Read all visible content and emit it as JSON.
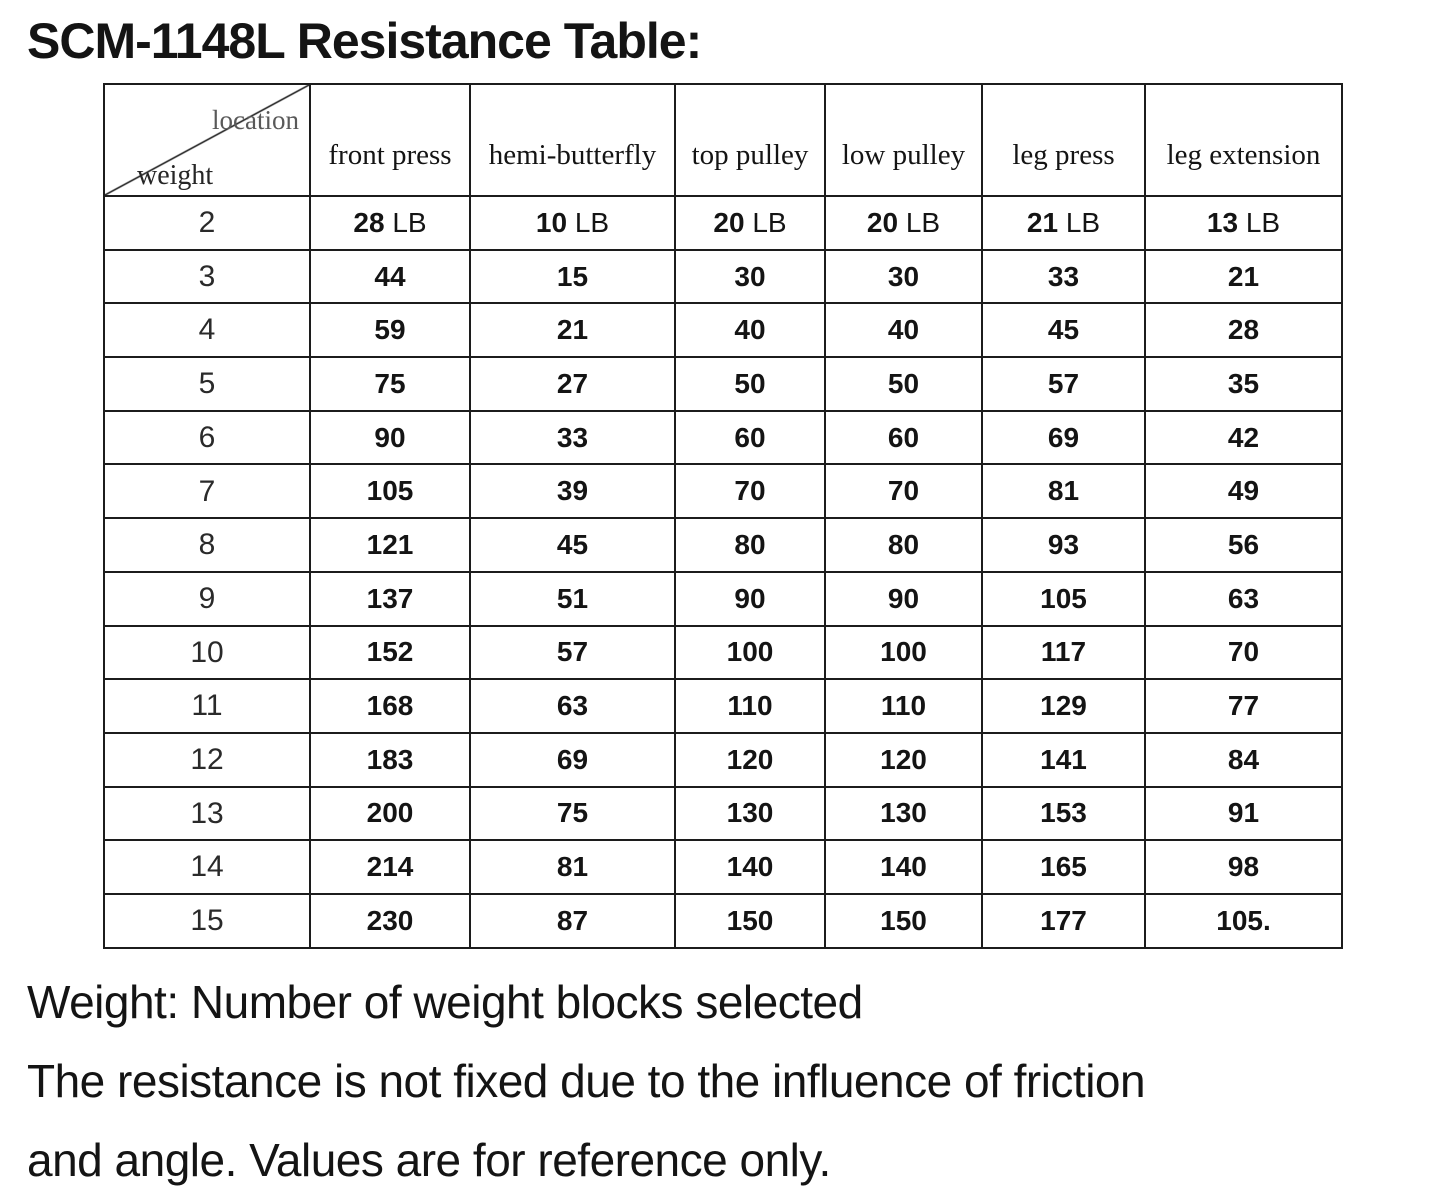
{
  "title": "SCM-1148L Resistance Table:",
  "table": {
    "corner": {
      "top_label": "location",
      "bottom_label": "weight"
    },
    "columns": [
      "front press",
      "hemi-butterfly",
      "top pulley",
      "low pulley",
      "leg press",
      "leg extension"
    ],
    "unit": "LB",
    "rows": [
      {
        "weight": "2",
        "show_unit": true,
        "values": [
          "28",
          "10",
          "20",
          "20",
          "21",
          "13"
        ]
      },
      {
        "weight": "3",
        "show_unit": false,
        "values": [
          "44",
          "15",
          "30",
          "30",
          "33",
          "21"
        ]
      },
      {
        "weight": "4",
        "show_unit": false,
        "values": [
          "59",
          "21",
          "40",
          "40",
          "45",
          "28"
        ]
      },
      {
        "weight": "5",
        "show_unit": false,
        "values": [
          "75",
          "27",
          "50",
          "50",
          "57",
          "35"
        ]
      },
      {
        "weight": "6",
        "show_unit": false,
        "values": [
          "90",
          "33",
          "60",
          "60",
          "69",
          "42"
        ]
      },
      {
        "weight": "7",
        "show_unit": false,
        "values": [
          "105",
          "39",
          "70",
          "70",
          "81",
          "49"
        ]
      },
      {
        "weight": "8",
        "show_unit": false,
        "values": [
          "121",
          "45",
          "80",
          "80",
          "93",
          "56"
        ]
      },
      {
        "weight": "9",
        "show_unit": false,
        "values": [
          "137",
          "51",
          "90",
          "90",
          "105",
          "63"
        ]
      },
      {
        "weight": "10",
        "show_unit": false,
        "values": [
          "152",
          "57",
          "100",
          "100",
          "117",
          "70"
        ]
      },
      {
        "weight": "11",
        "show_unit": false,
        "values": [
          "168",
          "63",
          "110",
          "110",
          "129",
          "77"
        ]
      },
      {
        "weight": "12",
        "show_unit": false,
        "values": [
          "183",
          "69",
          "120",
          "120",
          "141",
          "84"
        ]
      },
      {
        "weight": "13",
        "show_unit": false,
        "values": [
          "200",
          "75",
          "130",
          "130",
          "153",
          "91"
        ]
      },
      {
        "weight": "14",
        "show_unit": false,
        "values": [
          "214",
          "81",
          "140",
          "140",
          "165",
          "98"
        ]
      },
      {
        "weight": "15",
        "show_unit": false,
        "values": [
          "230",
          "87",
          "150",
          "150",
          "177",
          "105."
        ]
      }
    ]
  },
  "footer": {
    "line1": "Weight: Number of weight blocks selected",
    "line2": "The resistance is not fixed due to the influence of friction",
    "line3": "and angle. Values are for reference only."
  }
}
